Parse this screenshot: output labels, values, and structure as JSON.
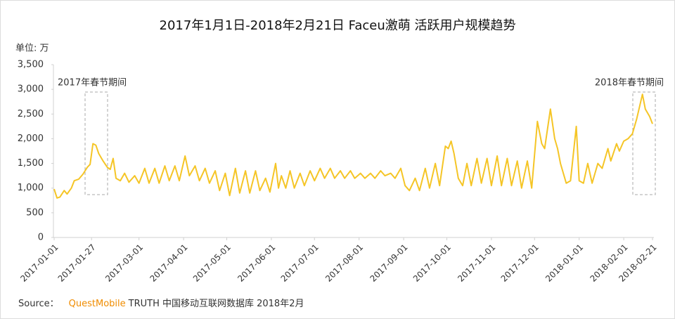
{
  "chart_data": {
    "type": "line",
    "title": "2017年1月1日-2018年2月21日 Faceu激萌 活跃用户规模趋势",
    "y_unit": "单位: 万",
    "annotations": [
      "2017年春节期间",
      "2018年春节期间"
    ],
    "source": {
      "prefix": "Source：",
      "brand": "QuestMobile",
      "text": "TRUTH 中国移动互联网数据库 2018年2月"
    },
    "xlim": [
      "2017-01-01",
      "2018-02-21"
    ],
    "xticks": [
      "2017-01-01",
      "2017-01-27",
      "2017-03-01",
      "2017-04-01",
      "2017-05-01",
      "2017-06-01",
      "2017-07-01",
      "2017-08-01",
      "2017-09-01",
      "2017-10-01",
      "2017-11-01",
      "2017-12-01",
      "2018-01-01",
      "2018-02-01",
      "2018-02-21"
    ],
    "ylim": [
      0,
      3500
    ],
    "yticks": [
      0,
      500,
      {
        "value": 1000,
        "label": "1,000"
      },
      {
        "value": 1500,
        "label": "1,500"
      },
      {
        "value": 2000,
        "label": "2,000"
      },
      {
        "value": 2500,
        "label": "2,500"
      },
      {
        "value": 3000,
        "label": "3,000"
      },
      {
        "value": 3500,
        "label": "3,500"
      }
    ],
    "grid": false,
    "color": "#f5c526",
    "x": [
      "2017-01-01",
      "2017-01-03",
      "2017-01-05",
      "2017-01-08",
      "2017-01-10",
      "2017-01-13",
      "2017-01-15",
      "2017-01-18",
      "2017-01-21",
      "2017-01-24",
      "2017-01-26",
      "2017-01-28",
      "2017-01-30",
      "2017-02-01",
      "2017-02-04",
      "2017-02-07",
      "2017-02-09",
      "2017-02-11",
      "2017-02-13",
      "2017-02-16",
      "2017-02-19",
      "2017-02-22",
      "2017-02-26",
      "2017-03-01",
      "2017-03-05",
      "2017-03-08",
      "2017-03-12",
      "2017-03-15",
      "2017-03-19",
      "2017-03-22",
      "2017-03-26",
      "2017-03-29",
      "2017-04-02",
      "2017-04-05",
      "2017-04-09",
      "2017-04-12",
      "2017-04-16",
      "2017-04-19",
      "2017-04-23",
      "2017-04-26",
      "2017-04-30",
      "2017-05-03",
      "2017-05-07",
      "2017-05-10",
      "2017-05-14",
      "2017-05-17",
      "2017-05-21",
      "2017-05-24",
      "2017-05-28",
      "2017-05-31",
      "2017-06-04",
      "2017-06-06",
      "2017-06-08",
      "2017-06-11",
      "2017-06-14",
      "2017-06-17",
      "2017-06-21",
      "2017-06-24",
      "2017-06-28",
      "2017-07-01",
      "2017-07-05",
      "2017-07-08",
      "2017-07-12",
      "2017-07-15",
      "2017-07-19",
      "2017-07-22",
      "2017-07-26",
      "2017-07-29",
      "2017-08-02",
      "2017-08-05",
      "2017-08-09",
      "2017-08-12",
      "2017-08-16",
      "2017-08-19",
      "2017-08-23",
      "2017-08-26",
      "2017-08-30",
      "2017-09-02",
      "2017-09-05",
      "2017-09-09",
      "2017-09-12",
      "2017-09-16",
      "2017-09-19",
      "2017-09-23",
      "2017-09-26",
      "2017-09-30",
      "2017-10-02",
      "2017-10-04",
      "2017-10-06",
      "2017-10-09",
      "2017-10-12",
      "2017-10-15",
      "2017-10-18",
      "2017-10-22",
      "2017-10-25",
      "2017-10-29",
      "2017-11-01",
      "2017-11-05",
      "2017-11-08",
      "2017-11-12",
      "2017-11-15",
      "2017-11-19",
      "2017-11-22",
      "2017-11-26",
      "2017-11-29",
      "2017-12-03",
      "2017-12-06",
      "2017-12-08",
      "2017-12-12",
      "2017-12-15",
      "2017-12-17",
      "2017-12-19",
      "2017-12-23",
      "2017-12-26",
      "2017-12-30",
      "2018-01-01",
      "2018-01-04",
      "2018-01-07",
      "2018-01-10",
      "2018-01-14",
      "2018-01-17",
      "2018-01-21",
      "2018-01-23",
      "2018-01-27",
      "2018-01-29",
      "2018-02-01",
      "2018-02-04",
      "2018-02-07",
      "2018-02-10",
      "2018-02-14",
      "2018-02-16",
      "2018-02-19",
      "2018-02-21"
    ],
    "values": [
      980,
      800,
      820,
      950,
      880,
      1000,
      1150,
      1180,
      1280,
      1420,
      1480,
      1900,
      1870,
      1700,
      1550,
      1420,
      1380,
      1600,
      1200,
      1150,
      1300,
      1120,
      1250,
      1100,
      1400,
      1100,
      1400,
      1100,
      1450,
      1150,
      1450,
      1150,
      1650,
      1250,
      1450,
      1150,
      1400,
      1100,
      1350,
      950,
      1300,
      850,
      1400,
      900,
      1350,
      900,
      1350,
      950,
      1200,
      920,
      1500,
      1000,
      1250,
      1000,
      1350,
      1000,
      1300,
      1050,
      1350,
      1150,
      1400,
      1200,
      1400,
      1200,
      1350,
      1200,
      1350,
      1200,
      1300,
      1200,
      1300,
      1200,
      1350,
      1250,
      1300,
      1200,
      1400,
      1050,
      950,
      1200,
      950,
      1400,
      1000,
      1500,
      1050,
      1850,
      1800,
      1950,
      1700,
      1200,
      1050,
      1500,
      1050,
      1600,
      1100,
      1600,
      1050,
      1650,
      1050,
      1600,
      1050,
      1550,
      1000,
      1550,
      1000,
      2350,
      1900,
      1800,
      2600,
      2000,
      1800,
      1500,
      1100,
      1150,
      2250,
      1150,
      1100,
      1500,
      1100,
      1500,
      1400,
      1800,
      1550,
      1900,
      1750,
      1950,
      2000,
      2100,
      2400,
      2900,
      2600,
      2450,
      2300
    ]
  }
}
